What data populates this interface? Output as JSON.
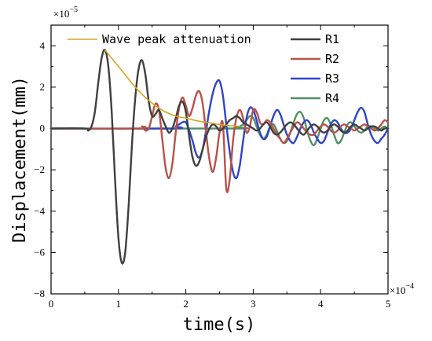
{
  "chart_data": {
    "type": "line",
    "xlabel": "time(s)",
    "ylabel": "Displacement(mm)",
    "x_multiplier": "×10",
    "x_exponent": "−4",
    "y_multiplier": "×10",
    "y_exponent": "−5",
    "xlim": [
      0,
      5
    ],
    "ylim": [
      -8,
      5
    ],
    "x_ticks": [
      0,
      1,
      2,
      3,
      4,
      5
    ],
    "x_tick_labels": [
      "0",
      "1",
      "2",
      "3",
      "4",
      "5"
    ],
    "y_ticks": [
      -8,
      -6,
      -4,
      -2,
      0,
      2,
      4
    ],
    "y_tick_labels": [
      "−8",
      "−6",
      "−4",
      "−2",
      "0",
      "2",
      "4"
    ],
    "grid": false,
    "legend_position": "top",
    "series": [
      {
        "name": "R1",
        "color": "#3f3f3f",
        "x": [
          0,
          0.5,
          0.55,
          0.6,
          0.65,
          0.7,
          0.75,
          0.8,
          0.85,
          0.9,
          0.95,
          1.0,
          1.05,
          1.1,
          1.15,
          1.2,
          1.25,
          1.3,
          1.35,
          1.4,
          1.45,
          1.5,
          1.55,
          1.6,
          1.65,
          1.7,
          1.75,
          1.8,
          1.85,
          1.9,
          1.95,
          2.0,
          2.05,
          2.1,
          2.15,
          2.2,
          2.25,
          2.3,
          2.35,
          2.4,
          2.45,
          2.5,
          2.55,
          2.6,
          2.65,
          2.7,
          2.75,
          2.8,
          2.85,
          2.9,
          2.95,
          3.0,
          3.05,
          3.1,
          3.15,
          3.2,
          3.25,
          3.3,
          3.35,
          3.4,
          3.45,
          3.5,
          3.55,
          3.6,
          3.65,
          3.7,
          3.75,
          3.8,
          3.85,
          3.9,
          3.95,
          4.0,
          4.05,
          4.1,
          4.15,
          4.2,
          4.25,
          4.3,
          4.35,
          4.4,
          4.45,
          4.5,
          4.55,
          4.6,
          4.65,
          4.7,
          4.75,
          4.8,
          4.85,
          4.9,
          4.95,
          5.0
        ],
        "values": [
          0,
          0,
          -0.1,
          0.1,
          0.8,
          2.2,
          3.4,
          3.8,
          3.0,
          0.8,
          -2.5,
          -5.3,
          -6.5,
          -6.0,
          -3.8,
          -0.8,
          1.5,
          2.9,
          3.3,
          2.6,
          1.3,
          0.6,
          0.7,
          0.9,
          0.5,
          0.1,
          -0.2,
          0,
          0.5,
          1.1,
          1.3,
          0.8,
          -0.4,
          -1.4,
          -1.8,
          -1.6,
          -1.0,
          -0.4,
          0,
          0.2,
          0.1,
          -0.1,
          0,
          0.2,
          0.4,
          0.5,
          0.6,
          0.5,
          0.3,
          0.2,
          0.1,
          0,
          -0.1,
          0,
          0.2,
          0.3,
          0.1,
          -0.2,
          -0.3,
          -0.2,
          0,
          0.2,
          0.3,
          0.2,
          0,
          -0.2,
          -0.3,
          -0.1,
          0.1,
          0.2,
          0.1,
          -0.1,
          -0.2,
          -0.1,
          0.1,
          0.2,
          0.1,
          -0.1,
          -0.2,
          -0.1,
          0.1,
          0.2,
          0.1,
          0,
          -0.1,
          0,
          0.1,
          0.1,
          0,
          -0.1,
          0,
          0
        ]
      },
      {
        "name": "R2",
        "color": "#b9514a",
        "x": [
          0,
          1.3,
          1.35,
          1.4,
          1.45,
          1.5,
          1.55,
          1.6,
          1.65,
          1.7,
          1.75,
          1.8,
          1.85,
          1.9,
          1.95,
          2.0,
          2.05,
          2.1,
          2.15,
          2.2,
          2.25,
          2.3,
          2.35,
          2.4,
          2.45,
          2.5,
          2.55,
          2.6,
          2.65,
          2.7,
          2.75,
          2.8,
          2.85,
          2.9,
          2.95,
          3.0,
          3.05,
          3.1,
          3.15,
          3.2,
          3.25,
          3.3,
          3.35,
          3.4,
          3.45,
          3.5,
          3.55,
          3.6,
          3.65,
          3.7,
          3.75,
          3.8,
          3.85,
          3.9,
          3.95,
          4.0,
          4.05,
          4.1,
          4.15,
          4.2,
          4.25,
          4.3,
          4.35,
          4.4,
          4.45,
          4.5,
          4.55,
          4.6,
          4.65,
          4.7,
          4.75,
          4.8,
          4.85,
          4.9,
          4.95,
          5.0
        ],
        "values": [
          0,
          0,
          0.1,
          -0.1,
          0,
          0.6,
          1.2,
          0.9,
          -0.5,
          -1.9,
          -2.4,
          -1.7,
          -0.2,
          1.0,
          1.5,
          1.1,
          0.6,
          1.0,
          1.6,
          1.8,
          1.2,
          -0.2,
          -1.5,
          -2.1,
          -1.4,
          -0.2,
          0.2,
          -2.9,
          -2.5,
          -0.6,
          0.5,
          0.9,
          0.5,
          -0.2,
          0.1,
          0.9,
          0.8,
          0.3,
          0.2,
          0.4,
          0.3,
          0,
          -0.3,
          -0.5,
          -0.7,
          -0.5,
          -0.2,
          0.1,
          0.3,
          0.2,
          0,
          -0.2,
          -0.3,
          -0.3,
          -0.1,
          0.1,
          0.2,
          0.1,
          -0.1,
          -0.2,
          -0.1,
          0.1,
          0.2,
          0.1,
          0.0,
          -0.1,
          0,
          0.1,
          0.2,
          0.1,
          0,
          -0.1,
          0,
          0.2,
          0.4,
          0.3
        ]
      },
      {
        "name": "R3",
        "color": "#2f44c8",
        "x": [
          0,
          1.8,
          1.85,
          1.9,
          1.95,
          2.0,
          2.05,
          2.1,
          2.15,
          2.2,
          2.25,
          2.3,
          2.35,
          2.4,
          2.45,
          2.5,
          2.55,
          2.6,
          2.65,
          2.7,
          2.75,
          2.8,
          2.85,
          2.9,
          2.95,
          3.0,
          3.05,
          3.1,
          3.15,
          3.2,
          3.25,
          3.3,
          3.35,
          3.4,
          3.45,
          3.5,
          3.55,
          3.6,
          3.65,
          3.7,
          3.75,
          3.8,
          3.85,
          3.9,
          3.95,
          4.0,
          4.05,
          4.1,
          4.15,
          4.2,
          4.25,
          4.3,
          4.35,
          4.4,
          4.45,
          4.5,
          4.55,
          4.6,
          4.65,
          4.7,
          4.75,
          4.8,
          4.85,
          4.9,
          4.95,
          5.0
        ],
        "values": [
          0,
          0,
          0.1,
          0.2,
          0.3,
          0.3,
          -0.1,
          -0.6,
          -1.2,
          -1.4,
          -1.0,
          -0.1,
          0.9,
          1.7,
          2.2,
          2.3,
          1.6,
          0.2,
          -1.1,
          -2.1,
          -2.4,
          -1.8,
          -0.6,
          0.5,
          1.0,
          0.9,
          0.4,
          -0.2,
          -0.5,
          -0.4,
          0.1,
          0.6,
          0.9,
          0.7,
          0.2,
          -0.3,
          -0.6,
          -0.7,
          -0.4,
          0,
          0.3,
          0.4,
          0.2,
          -0.2,
          -0.5,
          -0.7,
          -0.6,
          -0.2,
          0.2,
          0.4,
          0.3,
          0,
          -0.2,
          -0.2,
          0,
          0.4,
          0.8,
          1.0,
          0.8,
          0.2,
          -0.3,
          -0.6,
          -0.7,
          -0.5,
          -0.3,
          0
        ]
      },
      {
        "name": "R4",
        "color": "#4e8f65",
        "x": [
          0,
          2.7,
          2.75,
          2.8,
          2.85,
          2.9,
          2.95,
          3.0,
          3.05,
          3.1,
          3.15,
          3.2,
          3.25,
          3.3,
          3.35,
          3.4,
          3.45,
          3.5,
          3.55,
          3.6,
          3.65,
          3.7,
          3.75,
          3.8,
          3.85,
          3.9,
          3.95,
          4.0,
          4.05,
          4.1,
          4.15,
          4.2,
          4.25,
          4.3,
          4.35,
          4.4,
          4.45,
          4.5,
          4.55,
          4.6,
          4.65,
          4.7,
          4.75,
          4.8,
          4.85,
          4.9,
          4.95,
          5.0
        ],
        "values": [
          0,
          0,
          0.05,
          0.1,
          0.2,
          0.4,
          0.6,
          0.5,
          0.1,
          -0.3,
          -0.5,
          -0.3,
          0.1,
          0.2,
          -0.1,
          -0.5,
          -0.7,
          -0.6,
          -0.2,
          0.3,
          0.7,
          0.8,
          0.5,
          -0.1,
          -0.6,
          -0.8,
          -0.5,
          0,
          0.4,
          0.5,
          0.2,
          -0.3,
          -0.7,
          -0.6,
          -0.2,
          0.2,
          0.3,
          0.1,
          -0.1,
          -0.2,
          -0.1,
          0.1,
          0.1,
          0,
          -0.1,
          0,
          0.1,
          0
        ]
      },
      {
        "name": "Wave peak attenuation",
        "color": "#d9a520",
        "x": [
          0.8,
          0.95,
          1.1,
          1.25,
          1.4,
          1.55,
          1.7,
          1.85,
          2.0,
          2.2,
          2.4,
          2.6,
          2.8
        ],
        "values": [
          3.8,
          3.2,
          2.6,
          2.0,
          1.5,
          1.1,
          0.8,
          0.6,
          0.5,
          0.35,
          0.25,
          0.15,
          0.1
        ]
      }
    ],
    "legend_order": [
      "Wave peak attenuation",
      "R1",
      "R2",
      "R3",
      "R4"
    ]
  }
}
